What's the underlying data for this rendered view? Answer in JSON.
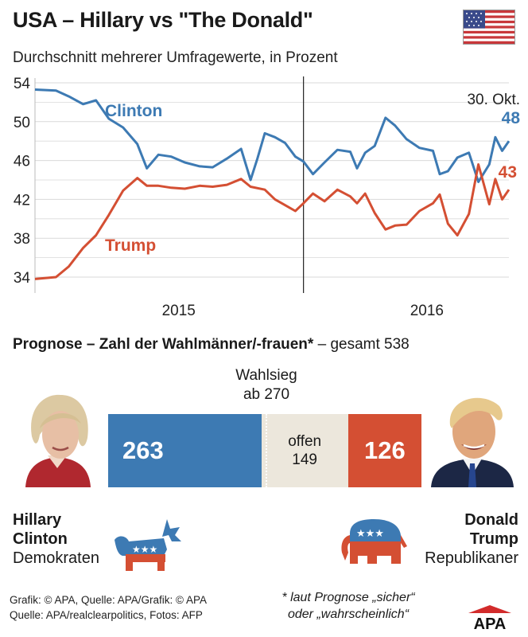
{
  "header": {
    "title": "USA – Hillary vs \"The Donald\"",
    "subtitle": "Durchschnitt mehrerer Umfragewerte, in Prozent"
  },
  "chart_data": {
    "type": "line",
    "x_start": "2014-12-01",
    "x_end": "2016-10-30",
    "x_ticks": [
      {
        "label": "2015",
        "date": "2015-07-01"
      },
      {
        "label": "2016",
        "date": "2016-07-01"
      }
    ],
    "year_divider": "2016-01-01",
    "ylim": [
      34,
      54
    ],
    "yticks": [
      34,
      38,
      42,
      46,
      50,
      54
    ],
    "grid": true,
    "end_label": "30. Okt.",
    "series": [
      {
        "name": "Clinton",
        "color": "#3d7ab3",
        "end_value": "48",
        "points": [
          [
            "2014-12-01",
            53.3
          ],
          [
            "2015-01-01",
            53.2
          ],
          [
            "2015-01-20",
            52.6
          ],
          [
            "2015-02-10",
            51.8
          ],
          [
            "2015-03-01",
            52.2
          ],
          [
            "2015-03-20",
            50.3
          ],
          [
            "2015-04-10",
            49.4
          ],
          [
            "2015-05-01",
            47.7
          ],
          [
            "2015-05-15",
            45.2
          ],
          [
            "2015-06-01",
            46.6
          ],
          [
            "2015-06-20",
            46.4
          ],
          [
            "2015-07-10",
            45.8
          ],
          [
            "2015-08-01",
            45.4
          ],
          [
            "2015-08-20",
            45.3
          ],
          [
            "2015-09-10",
            46.2
          ],
          [
            "2015-10-01",
            47.2
          ],
          [
            "2015-10-15",
            44.0
          ],
          [
            "2015-10-25",
            46.2
          ],
          [
            "2015-11-05",
            48.8
          ],
          [
            "2015-11-20",
            48.4
          ],
          [
            "2015-12-05",
            47.8
          ],
          [
            "2015-12-20",
            46.4
          ],
          [
            "2016-01-01",
            45.9
          ],
          [
            "2016-01-15",
            44.6
          ],
          [
            "2016-02-01",
            45.8
          ],
          [
            "2016-02-20",
            47.1
          ],
          [
            "2016-03-10",
            46.9
          ],
          [
            "2016-03-20",
            45.2
          ],
          [
            "2016-04-01",
            46.8
          ],
          [
            "2016-04-15",
            47.5
          ],
          [
            "2016-05-01",
            50.4
          ],
          [
            "2016-05-15",
            49.6
          ],
          [
            "2016-06-01",
            48.2
          ],
          [
            "2016-06-20",
            47.3
          ],
          [
            "2016-07-10",
            47.0
          ],
          [
            "2016-07-20",
            44.6
          ],
          [
            "2016-08-01",
            44.9
          ],
          [
            "2016-08-15",
            46.3
          ],
          [
            "2016-09-01",
            46.8
          ],
          [
            "2016-09-15",
            43.8
          ],
          [
            "2016-10-01",
            45.6
          ],
          [
            "2016-10-10",
            48.4
          ],
          [
            "2016-10-20",
            47.0
          ],
          [
            "2016-10-30",
            48.0
          ]
        ]
      },
      {
        "name": "Trump",
        "color": "#d44f33",
        "end_value": "43",
        "points": [
          [
            "2014-12-01",
            33.8
          ],
          [
            "2015-01-01",
            34.0
          ],
          [
            "2015-01-20",
            35.1
          ],
          [
            "2015-02-10",
            37.0
          ],
          [
            "2015-03-01",
            38.3
          ],
          [
            "2015-03-20",
            40.4
          ],
          [
            "2015-04-10",
            42.9
          ],
          [
            "2015-05-01",
            44.2
          ],
          [
            "2015-05-15",
            43.4
          ],
          [
            "2015-06-01",
            43.4
          ],
          [
            "2015-06-20",
            43.2
          ],
          [
            "2015-07-10",
            43.1
          ],
          [
            "2015-08-01",
            43.4
          ],
          [
            "2015-08-20",
            43.3
          ],
          [
            "2015-09-10",
            43.5
          ],
          [
            "2015-10-01",
            44.1
          ],
          [
            "2015-10-15",
            43.3
          ],
          [
            "2015-11-05",
            43.0
          ],
          [
            "2015-11-20",
            42.0
          ],
          [
            "2015-12-05",
            41.4
          ],
          [
            "2015-12-20",
            40.8
          ],
          [
            "2016-01-01",
            41.6
          ],
          [
            "2016-01-15",
            42.6
          ],
          [
            "2016-02-01",
            41.8
          ],
          [
            "2016-02-20",
            43.0
          ],
          [
            "2016-03-10",
            42.3
          ],
          [
            "2016-03-20",
            41.6
          ],
          [
            "2016-04-01",
            42.6
          ],
          [
            "2016-04-15",
            40.6
          ],
          [
            "2016-05-01",
            38.9
          ],
          [
            "2016-05-15",
            39.3
          ],
          [
            "2016-06-01",
            39.4
          ],
          [
            "2016-06-20",
            40.8
          ],
          [
            "2016-07-10",
            41.6
          ],
          [
            "2016-07-20",
            42.5
          ],
          [
            "2016-08-01",
            39.5
          ],
          [
            "2016-08-15",
            38.3
          ],
          [
            "2016-09-01",
            40.5
          ],
          [
            "2016-09-15",
            45.6
          ],
          [
            "2016-10-01",
            41.5
          ],
          [
            "2016-10-10",
            44.1
          ],
          [
            "2016-10-20",
            42.0
          ],
          [
            "2016-10-30",
            43.0
          ]
        ]
      }
    ]
  },
  "projection": {
    "title": "Prognose – Zahl der Wahlmänner/-frauen*",
    "total": "– gesamt 538",
    "threshold_line1": "Wahlsieg",
    "threshold_line2": "ab 270",
    "total_value": 538,
    "segments": [
      {
        "id": "clinton",
        "value": 263,
        "label": "263",
        "color": "#3d7ab3"
      },
      {
        "id": "offen",
        "value": 149,
        "label": "offen",
        "value_label": "149",
        "color": "#ece7dc"
      },
      {
        "id": "trump",
        "value": 126,
        "label": "126",
        "color": "#d44f33"
      }
    ]
  },
  "candidates": {
    "clinton": {
      "first": "Hillary",
      "last": "Clinton",
      "party": "Demokraten"
    },
    "trump": {
      "first": "Donald",
      "last": "Trump",
      "party": "Republikaner"
    }
  },
  "footer": {
    "credits_line1": "Grafik: © APA, Quelle: APA/Grafik: © APA",
    "credits_line2": "Quelle: APA/realclearpolitics, Fotos: AFP",
    "note_line1": "* laut Prognose „sicher“",
    "note_line2": "oder „wahrscheinlich“",
    "logo_text": "APA"
  },
  "icons": {
    "flag": "usa-flag-icon",
    "democrat": "democrat-donkey-icon",
    "republican": "republican-elephant-icon"
  }
}
